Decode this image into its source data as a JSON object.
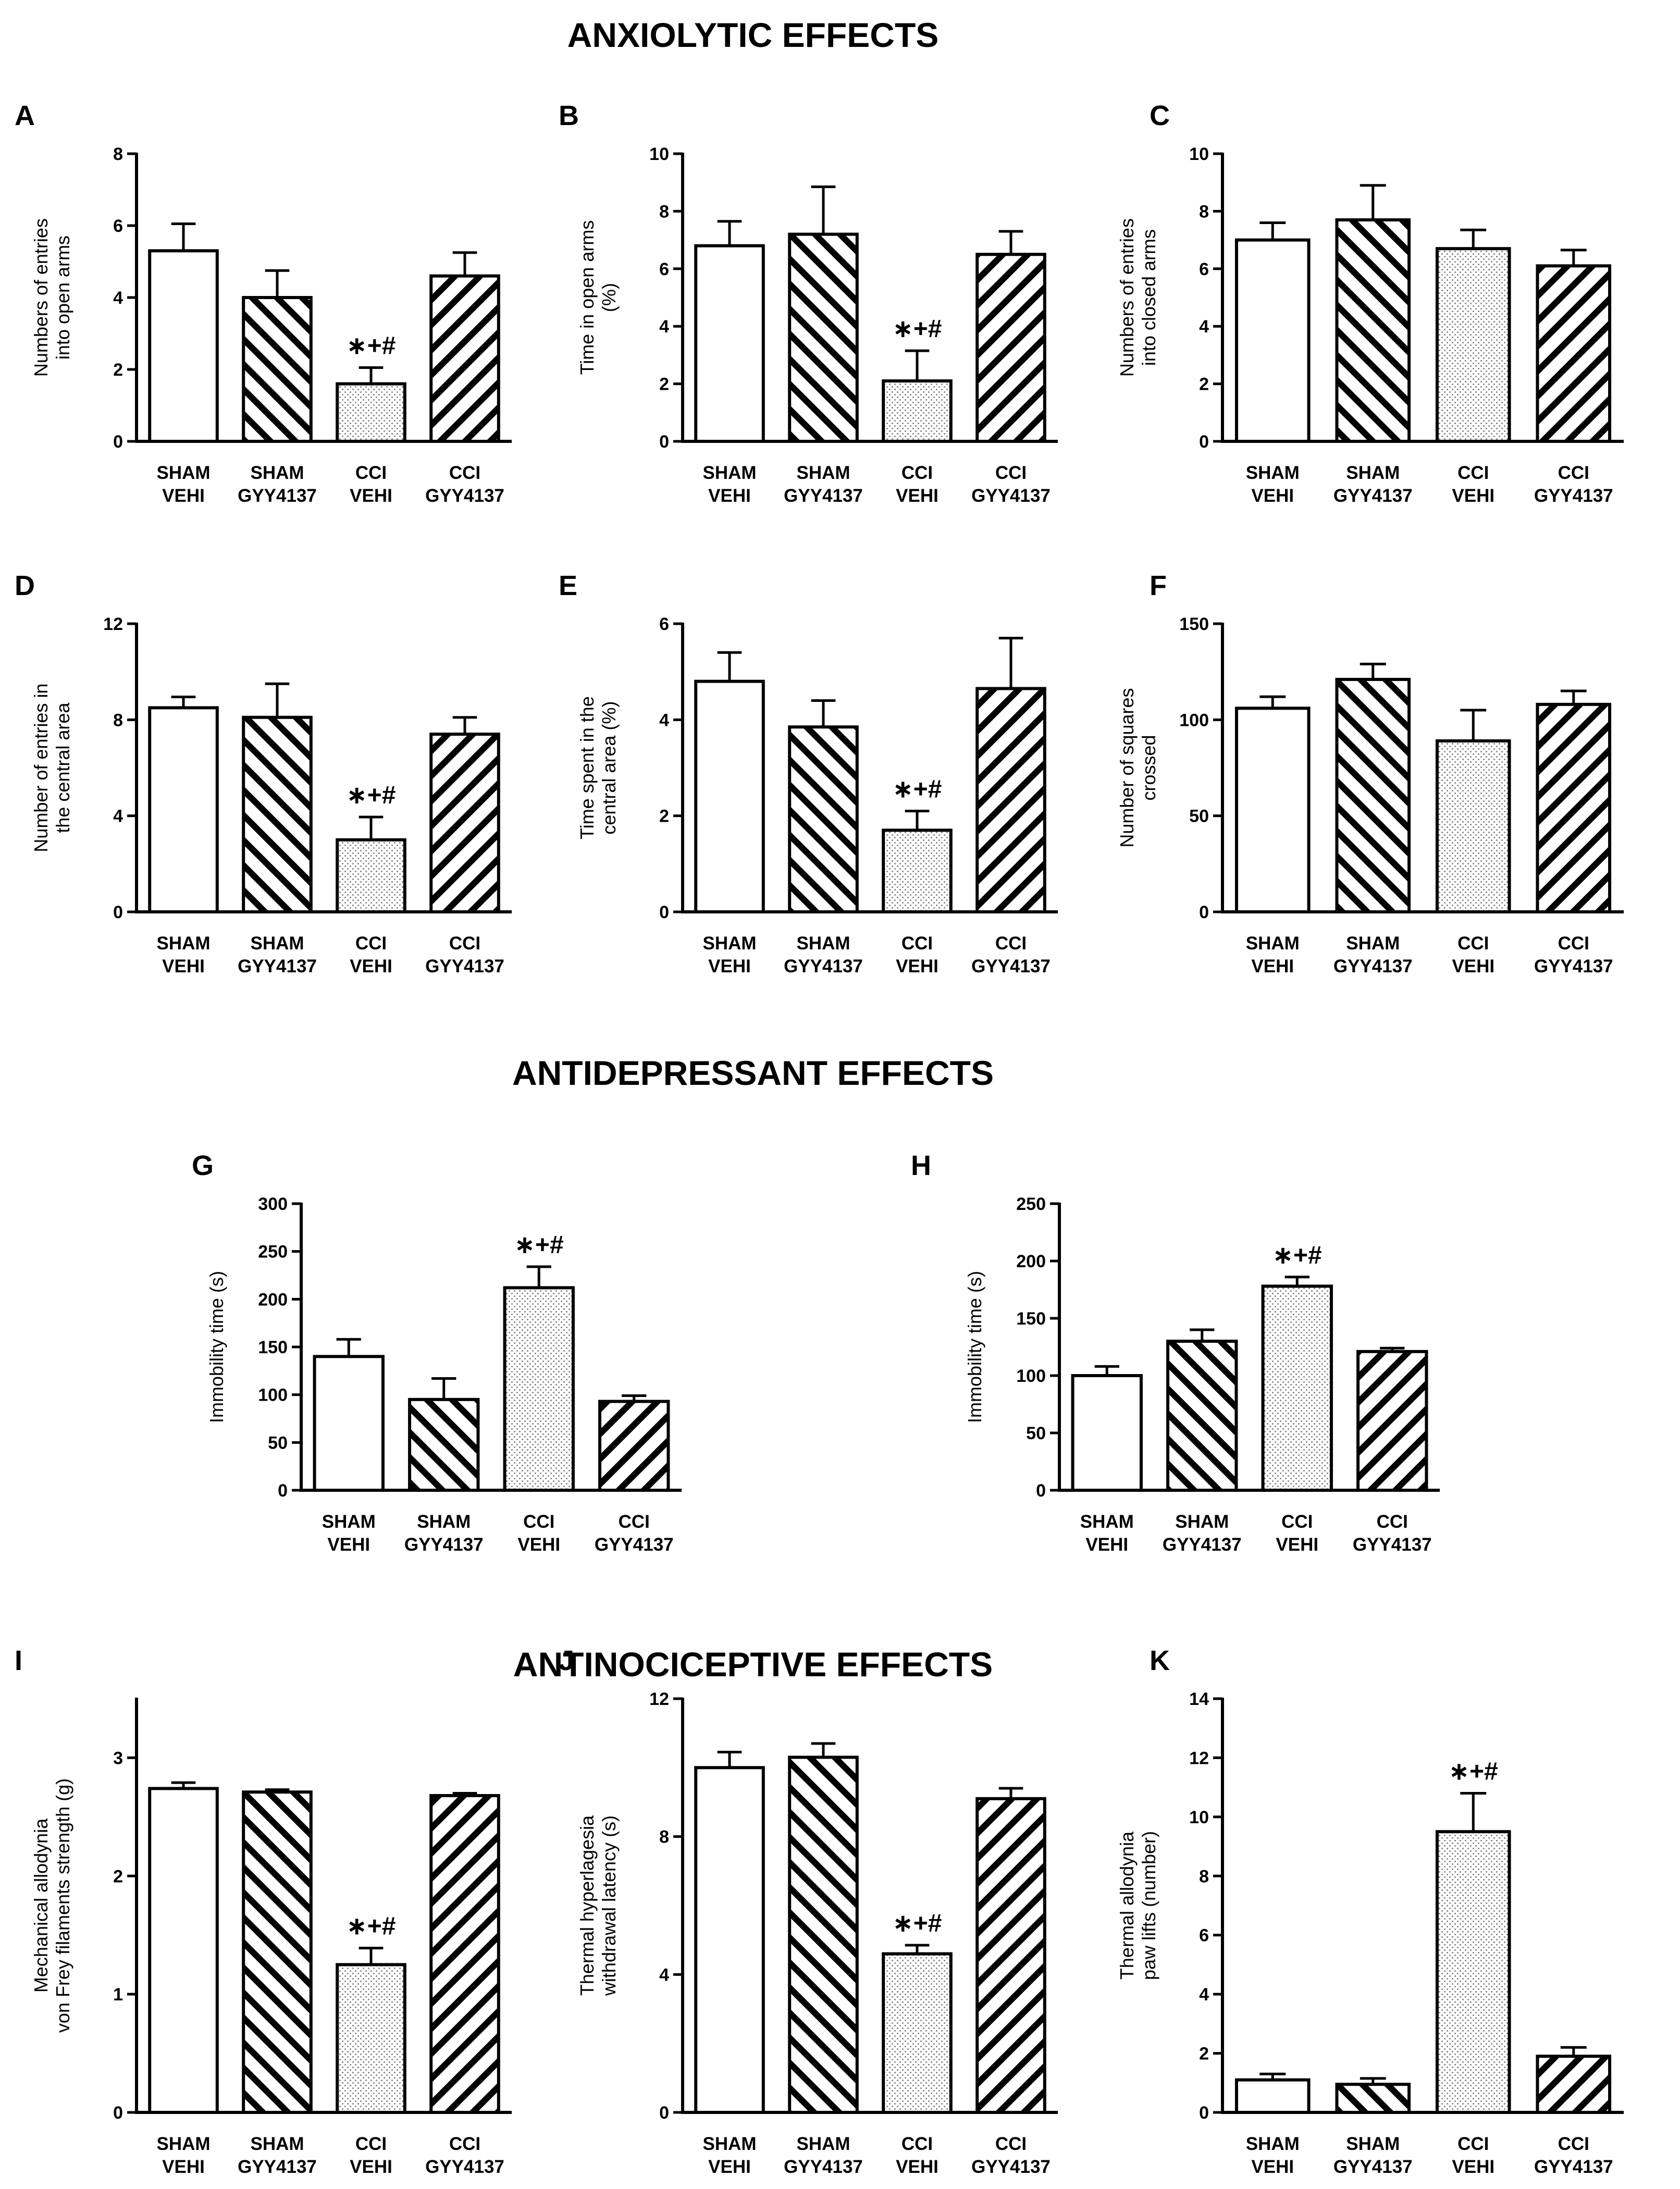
{
  "sections": [
    {
      "id": "anxiolytic",
      "title": "ANXIOLYTIC EFFECTS"
    },
    {
      "id": "antidepressant",
      "title": "ANTIDEPRESSANT EFFECTS"
    },
    {
      "id": "antinociceptive",
      "title": "ANTINOCICEPTIVE EFFECTS"
    }
  ],
  "groups": [
    {
      "line1": "SHAM",
      "line2": "VEHI",
      "pattern": "white"
    },
    {
      "line1": "SHAM",
      "line2": "GYY4137",
      "pattern": "hatch-right"
    },
    {
      "line1": "CCI",
      "line2": "VEHI",
      "pattern": "dots"
    },
    {
      "line1": "CCI",
      "line2": "GYY4137",
      "pattern": "hatch-left"
    }
  ],
  "significance_marker": "∗+#",
  "chart_data": [
    {
      "panel": "A",
      "type": "bar",
      "ylabel": [
        "Numbers of entries",
        "into open arms"
      ],
      "ylim": [
        0,
        8
      ],
      "yticks": [
        0,
        2,
        4,
        6,
        8
      ],
      "values": [
        5.3,
        4.0,
        1.6,
        4.6
      ],
      "errors": [
        0.75,
        0.75,
        0.45,
        0.65
      ],
      "annotation_bar": 2
    },
    {
      "panel": "B",
      "type": "bar",
      "ylabel": [
        "Time in open arms",
        "(%)"
      ],
      "ylim": [
        0,
        10
      ],
      "yticks": [
        0,
        2,
        4,
        6,
        8,
        10
      ],
      "values": [
        6.8,
        7.2,
        2.1,
        6.5
      ],
      "errors": [
        0.85,
        1.65,
        1.05,
        0.8
      ],
      "annotation_bar": 2
    },
    {
      "panel": "C",
      "type": "bar",
      "ylabel": [
        "Numbers of entries",
        "into closed arms"
      ],
      "ylim": [
        0,
        10
      ],
      "yticks": [
        0,
        2,
        4,
        6,
        8,
        10
      ],
      "values": [
        7.0,
        7.7,
        6.7,
        6.1
      ],
      "errors": [
        0.6,
        1.2,
        0.65,
        0.55
      ],
      "annotation_bar": null
    },
    {
      "panel": "D",
      "type": "bar",
      "ylabel": [
        "Number of entries in",
        "the central area"
      ],
      "ylim": [
        0,
        12
      ],
      "yticks": [
        0,
        4,
        8,
        12
      ],
      "values": [
        8.5,
        8.1,
        3.0,
        7.4
      ],
      "errors": [
        0.45,
        1.4,
        0.95,
        0.7
      ],
      "annotation_bar": 2
    },
    {
      "panel": "E",
      "type": "bar",
      "ylabel": [
        "Time spent in the",
        "central area (%)"
      ],
      "ylim": [
        0,
        6
      ],
      "yticks": [
        0,
        2,
        4,
        6
      ],
      "values": [
        4.8,
        3.85,
        1.7,
        4.65
      ],
      "errors": [
        0.6,
        0.55,
        0.4,
        1.05
      ],
      "annotation_bar": 2
    },
    {
      "panel": "F",
      "type": "bar",
      "ylabel": [
        "Number of squares",
        "crossed"
      ],
      "ylim": [
        0,
        150
      ],
      "yticks": [
        0,
        50,
        100,
        150
      ],
      "values": [
        106,
        121,
        89,
        108
      ],
      "errors": [
        6,
        8,
        16,
        7
      ],
      "annotation_bar": null
    },
    {
      "panel": "G",
      "type": "bar",
      "ylabel": [
        "Immobility time (s)"
      ],
      "ylim": [
        0,
        300
      ],
      "yticks": [
        0,
        50,
        100,
        150,
        200,
        250,
        300
      ],
      "values": [
        140,
        95,
        212,
        93
      ],
      "errors": [
        18,
        22,
        22,
        6
      ],
      "annotation_bar": 2
    },
    {
      "panel": "H",
      "type": "bar",
      "ylabel": [
        "Immobility time (s)"
      ],
      "ylim": [
        0,
        250
      ],
      "yticks": [
        0,
        50,
        100,
        150,
        200,
        250
      ],
      "values": [
        100,
        130,
        178,
        121
      ],
      "errors": [
        8,
        10,
        8,
        3
      ],
      "annotation_bar": 2
    },
    {
      "panel": "I",
      "type": "bar",
      "ylabel": [
        "Mechanical allodynia",
        "von Frey filaments strength (g)"
      ],
      "ylim": [
        0,
        3.5
      ],
      "yticks": [
        0,
        1,
        2,
        3
      ],
      "values": [
        2.74,
        2.71,
        1.25,
        2.68
      ],
      "errors": [
        0.05,
        0.02,
        0.14,
        0.02
      ],
      "annotation_bar": 2
    },
    {
      "panel": "J",
      "type": "bar",
      "ylabel": [
        "Thermal hyperlagesia",
        "withdrawal latency (s)"
      ],
      "ylim": [
        0,
        12
      ],
      "yticks": [
        0,
        4,
        8,
        12
      ],
      "values": [
        10.0,
        10.3,
        4.6,
        9.1
      ],
      "errors": [
        0.45,
        0.4,
        0.25,
        0.3
      ],
      "annotation_bar": 2
    },
    {
      "panel": "K",
      "type": "bar",
      "ylabel": [
        "Thermal allodynia",
        "paw lifts (number)"
      ],
      "ylim": [
        0,
        14
      ],
      "yticks": [
        0,
        2,
        4,
        6,
        8,
        10,
        12,
        14
      ],
      "values": [
        1.1,
        0.95,
        9.5,
        1.9
      ],
      "errors": [
        0.2,
        0.2,
        1.3,
        0.3
      ],
      "annotation_bar": 2
    }
  ]
}
